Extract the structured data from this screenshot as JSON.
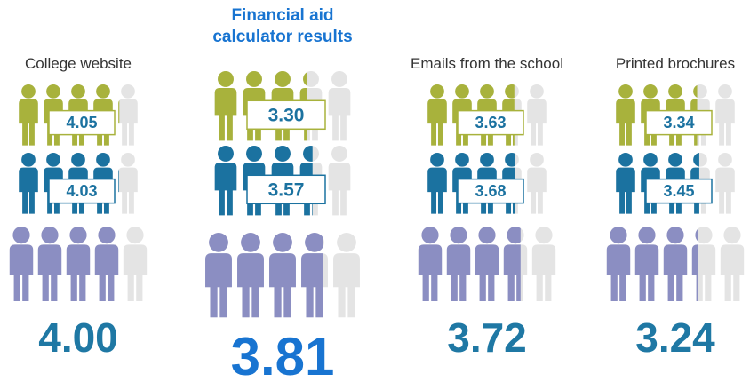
{
  "chart_data": {
    "type": "pictogram",
    "icon_count": 5,
    "highlight": 1,
    "categories": [
      "College website",
      "Financial aid calculator results",
      "Emails from the school",
      "Printed brochures"
    ],
    "series": [
      {
        "color": "#a8b23c",
        "values": [
          4.05,
          3.3,
          3.63,
          3.34
        ],
        "value_labels": [
          "4.05",
          "3.30",
          "3.63",
          "3.34"
        ]
      },
      {
        "color": "#1b72a0",
        "values": [
          4.03,
          3.57,
          3.68,
          3.45
        ],
        "value_labels": [
          "4.03",
          "3.57",
          "3.68",
          "3.45"
        ]
      },
      {
        "color": "#8b8ec2",
        "values": [
          4.0,
          3.81,
          3.72,
          3.24
        ],
        "value_labels": [
          "4.00",
          "3.81",
          "3.72",
          "3.24"
        ]
      }
    ]
  }
}
